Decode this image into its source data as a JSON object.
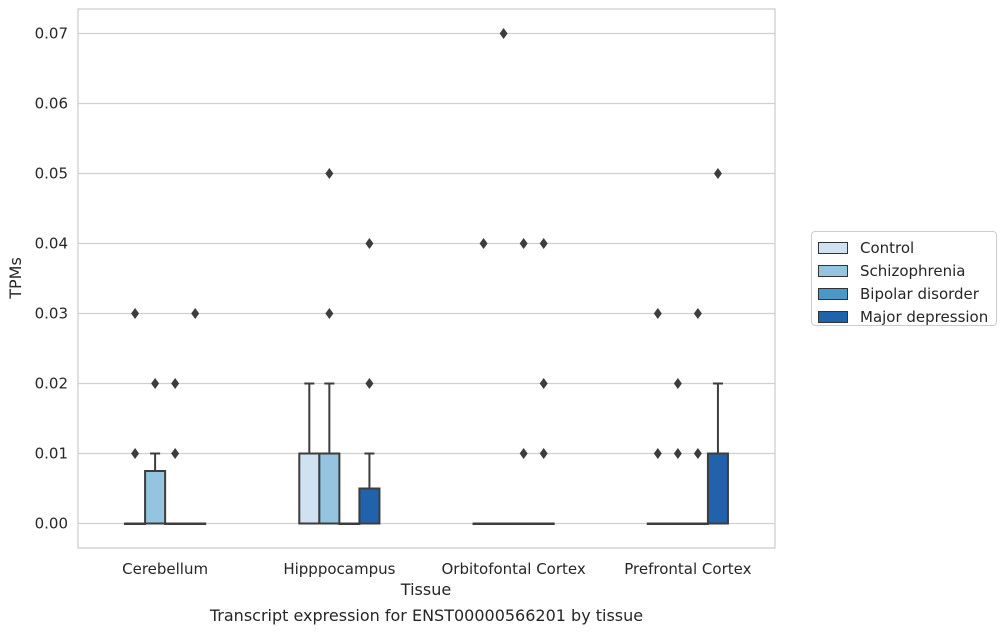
{
  "chart_data": {
    "type": "box",
    "xlabel": "Tissue",
    "ylabel": "TPMs",
    "caption": "Transcript expression for ENST00000566201 by tissue",
    "ylim": [
      -0.0035,
      0.0735
    ],
    "yticks": [
      "0.00",
      "0.01",
      "0.02",
      "0.03",
      "0.04",
      "0.05",
      "0.06",
      "0.07"
    ],
    "categories": [
      "Cerebellum",
      "Hipppocampus",
      "Orbitofontal Cortex",
      "Prefrontal Cortex"
    ],
    "grid": true,
    "legend_position": "right",
    "series": [
      {
        "name": "Control",
        "color": "#d0e1f2",
        "boxes": [
          {
            "q1": 0,
            "median": 0,
            "q3": 0,
            "whisker_low": 0,
            "whisker_high": 0,
            "outliers": [
              0.01,
              0.03
            ]
          },
          {
            "q1": 0,
            "median": 0,
            "q3": 0.01,
            "whisker_low": 0,
            "whisker_high": 0.02,
            "outliers": []
          },
          {
            "q1": 0,
            "median": 0,
            "q3": 0,
            "whisker_low": 0,
            "whisker_high": 0,
            "outliers": [
              0.04
            ]
          },
          {
            "q1": 0,
            "median": 0,
            "q3": 0,
            "whisker_low": 0,
            "whisker_high": 0,
            "outliers": [
              0.01,
              0.03
            ]
          }
        ]
      },
      {
        "name": "Schizophrenia",
        "color": "#94c4df",
        "boxes": [
          {
            "q1": 0,
            "median": 0,
            "q3": 0.0075,
            "whisker_low": 0,
            "whisker_high": 0.01,
            "outliers": [
              0.02
            ]
          },
          {
            "q1": 0,
            "median": 0,
            "q3": 0.01,
            "whisker_low": 0,
            "whisker_high": 0.02,
            "outliers": [
              0.03,
              0.05
            ]
          },
          {
            "q1": 0,
            "median": 0,
            "q3": 0,
            "whisker_low": 0,
            "whisker_high": 0,
            "outliers": [
              0.07
            ]
          },
          {
            "q1": 0,
            "median": 0,
            "q3": 0,
            "whisker_low": 0,
            "whisker_high": 0,
            "outliers": [
              0.01,
              0.02
            ]
          }
        ]
      },
      {
        "name": "Bipolar disorder",
        "color": "#4a98c9",
        "boxes": [
          {
            "q1": 0,
            "median": 0,
            "q3": 0,
            "whisker_low": 0,
            "whisker_high": 0,
            "outliers": [
              0.01,
              0.02
            ]
          },
          {
            "q1": 0,
            "median": 0,
            "q3": 0,
            "whisker_low": 0,
            "whisker_high": 0,
            "outliers": []
          },
          {
            "q1": 0,
            "median": 0,
            "q3": 0,
            "whisker_low": 0,
            "whisker_high": 0,
            "outliers": [
              0.01,
              0.04
            ]
          },
          {
            "q1": 0,
            "median": 0,
            "q3": 0,
            "whisker_low": 0,
            "whisker_high": 0,
            "outliers": [
              0.01,
              0.03
            ]
          }
        ]
      },
      {
        "name": "Major depression",
        "color": "#2163aa",
        "boxes": [
          {
            "q1": 0,
            "median": 0,
            "q3": 0,
            "whisker_low": 0,
            "whisker_high": 0,
            "outliers": [
              0.03
            ]
          },
          {
            "q1": 0,
            "median": 0,
            "q3": 0.005,
            "whisker_low": 0,
            "whisker_high": 0.01,
            "outliers": [
              0.02,
              0.04
            ]
          },
          {
            "q1": 0,
            "median": 0,
            "q3": 0,
            "whisker_low": 0,
            "whisker_high": 0,
            "outliers": [
              0.01,
              0.02,
              0.04
            ]
          },
          {
            "q1": 0,
            "median": 0,
            "q3": 0.01,
            "whisker_low": 0,
            "whisker_high": 0.02,
            "outliers": [
              0.05
            ]
          }
        ]
      }
    ]
  }
}
